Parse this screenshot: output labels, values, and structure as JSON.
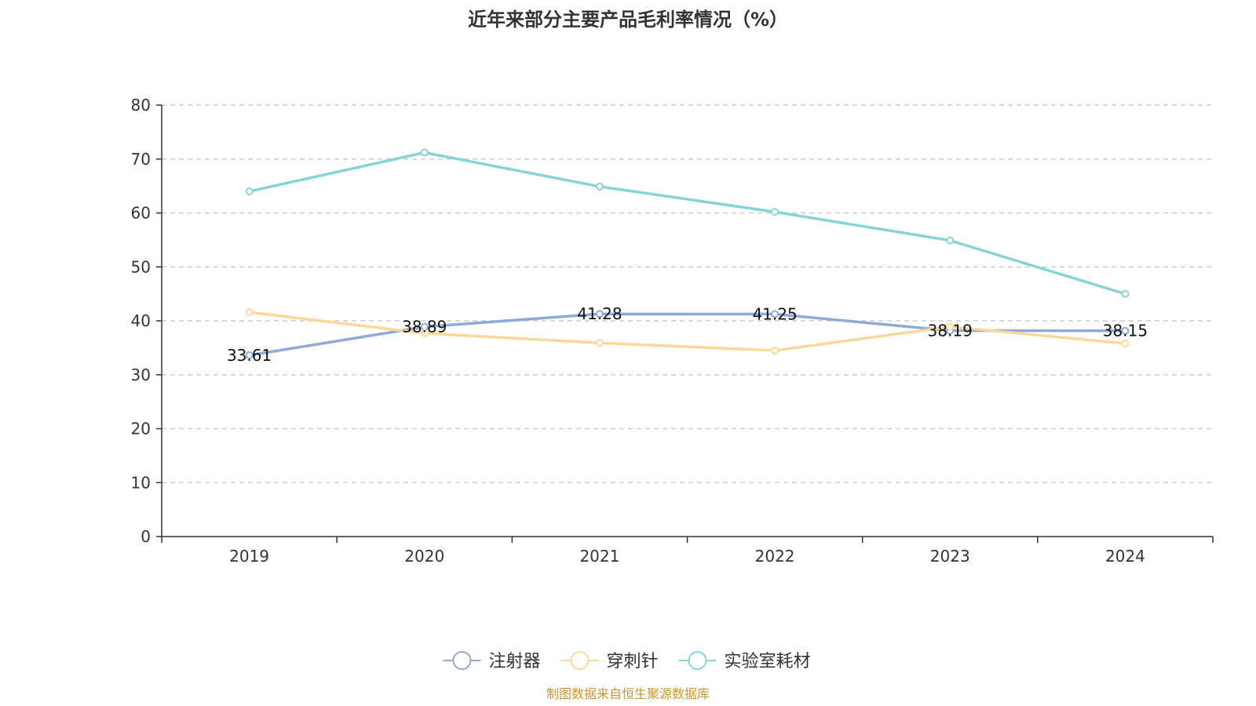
{
  "source_note": "制图数据来自恒生聚源数据库",
  "chart_data": {
    "type": "line",
    "title": "近年来部分主要产品毛利率情况（%）",
    "xlabel": "",
    "ylabel": "",
    "categories": [
      "2019",
      "2020",
      "2021",
      "2022",
      "2023",
      "2024"
    ],
    "ylim": [
      0,
      80
    ],
    "yticks": [
      0,
      10,
      20,
      30,
      40,
      50,
      60,
      70,
      80
    ],
    "grid": true,
    "legend_position": "bottom-center",
    "series": [
      {
        "name": "注射器",
        "color": "#8eaad6",
        "values": [
          33.61,
          38.89,
          41.28,
          41.25,
          38.19,
          38.15
        ],
        "show_labels": true
      },
      {
        "name": "穿刺针",
        "color": "#fad899",
        "values": [
          41.6,
          37.7,
          35.9,
          34.5,
          38.9,
          35.8
        ],
        "show_labels": false
      },
      {
        "name": "实验室耗材",
        "color": "#87d4d6",
        "values": [
          64.0,
          71.2,
          64.9,
          60.2,
          54.9,
          45.0
        ],
        "show_labels": false
      }
    ]
  }
}
